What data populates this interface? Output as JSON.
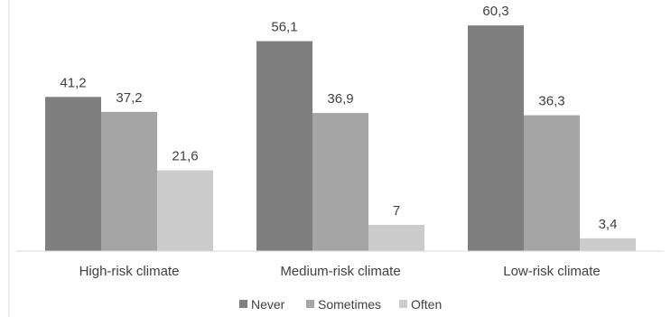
{
  "chart_data": {
    "type": "bar",
    "categories": [
      "High-risk climate",
      "Medium-risk climate",
      "Low-risk climate"
    ],
    "series": [
      {
        "name": "Never",
        "values": [
          41.2,
          56.1,
          60.3
        ],
        "labels": [
          "41,2",
          "56,1",
          "60,3"
        ]
      },
      {
        "name": "Sometimes",
        "values": [
          37.2,
          36.9,
          36.3
        ],
        "labels": [
          "37,2",
          "36,9",
          "36,3"
        ]
      },
      {
        "name": "Often",
        "values": [
          21.6,
          7,
          3.4
        ],
        "labels": [
          "21,6",
          "7",
          "3,4"
        ]
      }
    ],
    "ylim": [
      0,
      63
    ],
    "grid": false,
    "legend_position": "bottom",
    "colors": [
      "#7f7f7f",
      "#a5a5a5",
      "#cbcbcb"
    ]
  }
}
